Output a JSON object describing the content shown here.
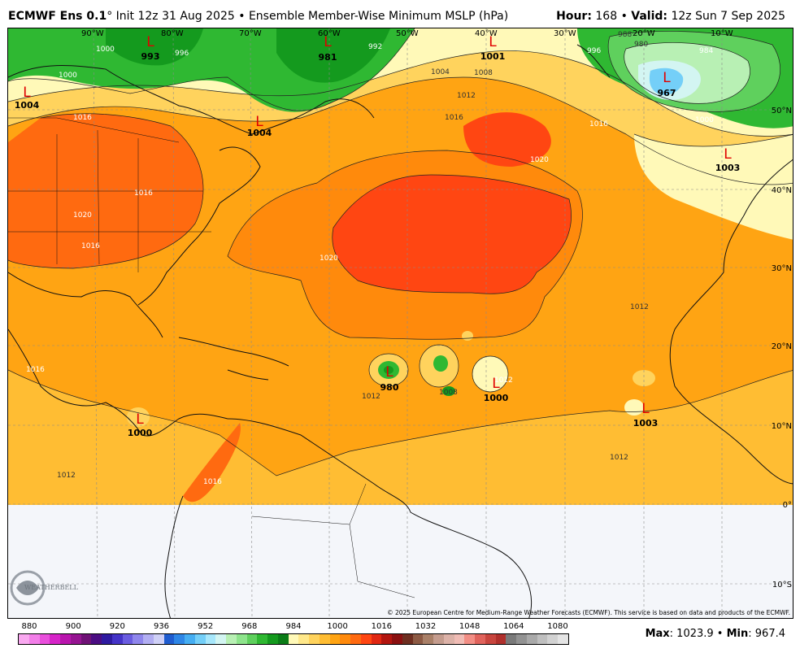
{
  "header": {
    "model": "ECMWF Ens 0.1",
    "degree": "°",
    "init": " Init 12z 31 Aug 2025",
    "sep": " • ",
    "title": "Ensemble Member-Wise Minimum MSLP (hPa)",
    "hour_label": "Hour:",
    "hour_value": " 168 ",
    "valid_label": "Valid:",
    "valid_value": " 12z Sun 7 Sep 2025"
  },
  "map": {
    "lon_labels": [
      "90°W",
      "80°W",
      "70°W",
      "60°W",
      "50°W",
      "40°W",
      "30°W",
      "20°W",
      "10°W"
    ],
    "lat_labels": [
      "50°N",
      "40°N",
      "30°N",
      "20°N",
      "10°N",
      "0°",
      "10°S"
    ],
    "contour_labels": [
      "1000",
      "1000",
      "996",
      "992",
      "1004",
      "1008",
      "1012",
      "1016",
      "1020",
      "1016",
      "1016",
      "1016",
      "1020",
      "1020",
      "1016",
      "1012",
      "1012",
      "988",
      "980",
      "984",
      "996",
      "1000",
      "1016",
      "1012",
      "1016",
      "1012",
      "1008",
      "1012"
    ],
    "lows": [
      {
        "symbol": "L",
        "value": "993"
      },
      {
        "symbol": "L",
        "value": "981"
      },
      {
        "symbol": "L",
        "value": "1001"
      },
      {
        "symbol": "L",
        "value": "1004"
      },
      {
        "symbol": "L",
        "value": "1004"
      },
      {
        "symbol": "L",
        "value": "967"
      },
      {
        "symbol": "L",
        "value": "1003"
      },
      {
        "symbol": "L",
        "value": "980"
      },
      {
        "symbol": "L",
        "value": "1000"
      },
      {
        "symbol": "L",
        "value": "1003"
      },
      {
        "symbol": "L",
        "value": "1000"
      }
    ],
    "logo_text": "WEATHERBELL",
    "copyright": "© 2025 European Centre for Medium-Range Weather Forecasts (ECMWF). This service is based on data and products of the ECMWF."
  },
  "colorbar": {
    "labels": [
      "880",
      "900",
      "920",
      "936",
      "952",
      "968",
      "984",
      "1000",
      "1016",
      "1032",
      "1048",
      "1064",
      "1080"
    ],
    "colors": [
      "#f9a8f0",
      "#f27ee8",
      "#e94fdc",
      "#d624c8",
      "#b915ad",
      "#951491",
      "#6f1276",
      "#4b0d82",
      "#2e1aa0",
      "#4433c7",
      "#6a5ce0",
      "#8f86ec",
      "#b2aef2",
      "#cfd0f6",
      "#1f5ccf",
      "#2e86e6",
      "#46aef2",
      "#74cff8",
      "#a7e7fb",
      "#d3f5f2",
      "#b8f0b4",
      "#8ee48c",
      "#5fd05d",
      "#2fb832",
      "#149a1e",
      "#0b7c17",
      "#fff9b8",
      "#ffe88a",
      "#ffd35d",
      "#ffbd33",
      "#ffa413",
      "#ff8a0c",
      "#ff6a10",
      "#ff4612",
      "#e02712",
      "#b2150f",
      "#8a1010",
      "#6e2e20",
      "#8c5a44",
      "#a98068",
      "#c49c8e",
      "#dcb2a8",
      "#f0bcb5",
      "#f28e85",
      "#e0635c",
      "#c8453e",
      "#b0302c",
      "#7a7a7a",
      "#929292",
      "#a9a9a9",
      "#bfbfbf",
      "#d2d2d2",
      "#e4e4e4"
    ]
  },
  "footer": {
    "max_label": "Max",
    "max_value": ": 1023.9 • ",
    "min_label": "Min",
    "min_value": ": 967.4"
  }
}
